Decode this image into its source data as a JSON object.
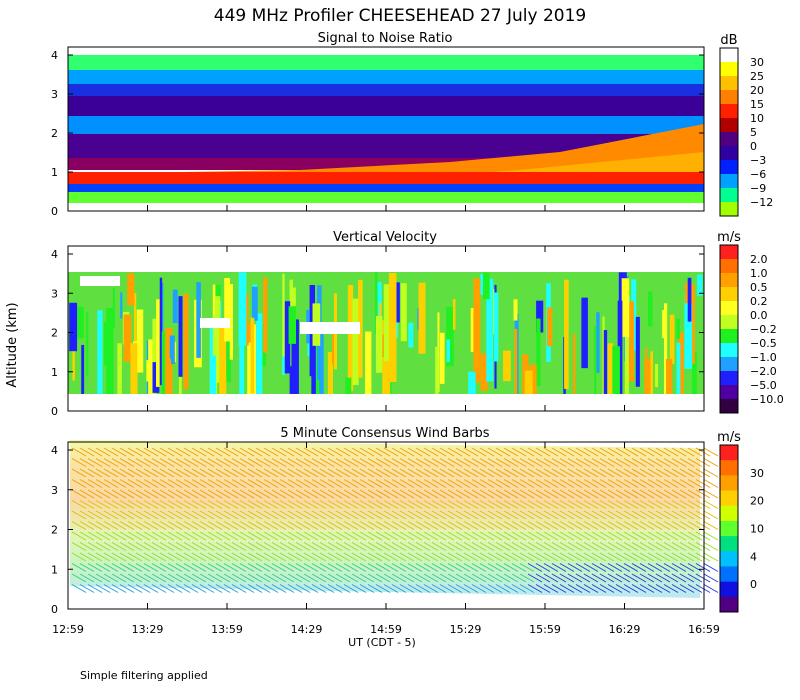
{
  "figure": {
    "title": "449 MHz Profiler CHEESEHEAD 27 July 2019",
    "footer": "Simple filtering applied"
  },
  "chart_data": [
    {
      "type": "heatmap",
      "title": "Signal to Noise Ratio",
      "ylabel": "Altitude (km)",
      "ylim": [
        0,
        4
      ],
      "yticks": [
        "0",
        "1",
        "2",
        "3",
        "4"
      ],
      "xlabel": "UT  (CDT - 5)",
      "xticks": [
        "12:59",
        "13:29",
        "13:59",
        "14:29",
        "14:59",
        "15:29",
        "15:59",
        "16:29",
        "16:59"
      ],
      "colorbar": {
        "unit": "dB",
        "labels": [
          "30",
          "25",
          "20",
          "15",
          "10",
          "5",
          "0",
          "−3",
          "−6",
          "−9",
          "−12"
        ],
        "colors": [
          "#ffffff",
          "#ffff00",
          "#ffc000",
          "#ff8000",
          "#ff2000",
          "#b00000",
          "#500080",
          "#3000a0",
          "#0020ff",
          "#00a0ff",
          "#00ff90",
          "#a0ff00"
        ]
      }
    },
    {
      "type": "heatmap",
      "title": "Vertical Velocity",
      "ylabel": "Altitude (km)",
      "ylim": [
        0,
        4
      ],
      "yticks": [
        "0",
        "1",
        "2",
        "3",
        "4"
      ],
      "colorbar": {
        "unit": "m/s",
        "labels": [
          "2.0",
          "1.0",
          "0.5",
          "0.2",
          "0.0",
          "−0.2",
          "−0.5",
          "−1.0",
          "−2.0",
          "−5.0",
          "−10.0"
        ],
        "colors": [
          "#ff2020",
          "#ff7000",
          "#ffa000",
          "#ffd000",
          "#ffff20",
          "#c0ff20",
          "#20f020",
          "#20ffff",
          "#20a0ff",
          "#2020ff",
          "#5000a0",
          "#300040"
        ]
      }
    },
    {
      "type": "wind-barbs",
      "title": "5 Minute Consensus Wind Barbs",
      "ylabel": "Altitude (km)",
      "ylim": [
        0,
        4
      ],
      "yticks": [
        "0",
        "1",
        "2",
        "3",
        "4"
      ],
      "colorbar": {
        "unit": "m/s",
        "labels": [
          "30",
          "20",
          "10",
          "4",
          "0"
        ],
        "colors": [
          "#ff2020",
          "#ff7000",
          "#ffa000",
          "#ffd000",
          "#d0ff00",
          "#60ff30",
          "#00e080",
          "#00c0ff",
          "#0070ff",
          "#1010e0",
          "#500080"
        ]
      }
    }
  ]
}
